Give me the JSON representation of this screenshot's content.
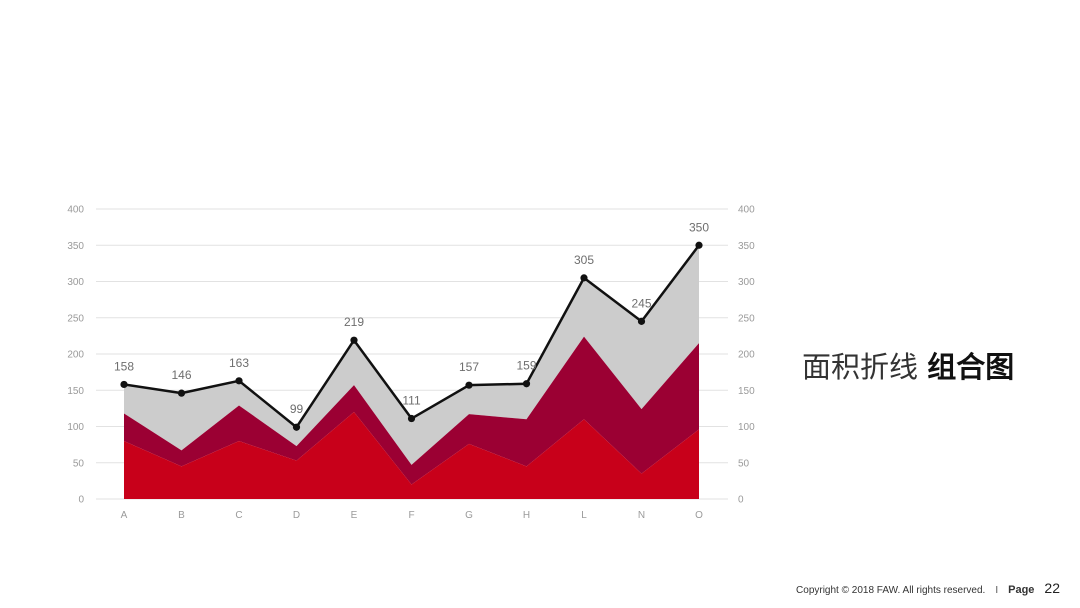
{
  "slide": {
    "title_light": "面积折线",
    "title_bold": "组合图",
    "footer": {
      "copyright": "Copyright © 2018 FAW. All rights reserved.",
      "separator": "I",
      "page_label": "Page",
      "page_number": "22"
    }
  },
  "colors": {
    "series_1": "#c8001a",
    "series_2": "#9b0033",
    "series_3": "#cccccc",
    "line": "#111111",
    "grid": "#e2e2e2"
  },
  "chart_data": {
    "type": "area",
    "categories": [
      "A",
      "B",
      "C",
      "D",
      "E",
      "F",
      "G",
      "H",
      "L",
      "N",
      "O"
    ],
    "ylim": [
      0,
      400
    ],
    "yticks": [
      0,
      50,
      100,
      150,
      200,
      250,
      300,
      350,
      400
    ],
    "y2ticks": [
      0,
      50,
      100,
      150,
      200,
      250,
      300,
      350,
      400
    ],
    "stacked": true,
    "grid": true,
    "series": [
      {
        "kind": "area",
        "values": [
          80,
          45,
          80,
          53,
          120,
          20,
          76,
          45,
          110,
          35,
          96
        ]
      },
      {
        "kind": "area",
        "values": [
          38,
          22,
          49,
          20,
          37,
          27,
          41,
          65,
          114,
          89,
          119
        ]
      },
      {
        "kind": "area",
        "values": [
          40,
          79,
          34,
          26,
          62,
          64,
          40,
          49,
          81,
          121,
          135
        ]
      },
      {
        "kind": "line",
        "values": [
          158,
          146,
          163,
          99,
          219,
          111,
          157,
          159,
          305,
          245,
          350
        ],
        "data_labels": [
          "158",
          "146",
          "163",
          "99",
          "219",
          "111",
          "157",
          "159",
          "305",
          "245",
          "350"
        ]
      }
    ]
  }
}
